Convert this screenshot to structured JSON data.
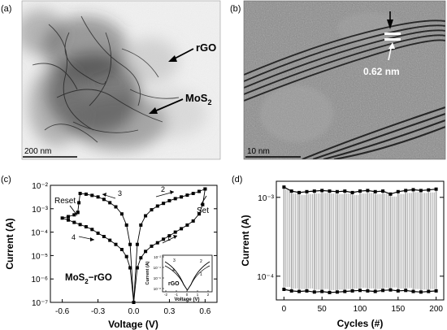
{
  "panel_a": {
    "letter": "(a)",
    "label_rgo": "rGO",
    "label_mos2_main": "MoS",
    "label_mos2_sub": "2",
    "scale_bar": "200 nm"
  },
  "panel_b": {
    "letter": "(b)",
    "spacing_label": "0.62 nm",
    "scale_bar": "10 nm"
  },
  "panel_c": {
    "letter": "(c)",
    "reset_label": "Reset",
    "set_label": "Set",
    "sample_label": "MoS",
    "sample_sub": "2",
    "sample_suffix": "−rGO",
    "arrow_numbers": [
      "1",
      "2",
      "3",
      "4"
    ],
    "inset_label": "rGO",
    "inset_xlabel": "Voltage (V)",
    "inset_ylabel": "Current (A)",
    "inset_xticks": [
      "-2",
      "-1",
      "0",
      "1",
      "2"
    ],
    "inset_yticks": [
      "10⁻²",
      "10⁻⁴",
      "10⁻⁶",
      "10⁻⁸"
    ],
    "inset_curve_labels": [
      "1",
      "2",
      "3",
      "4"
    ]
  },
  "panel_d": {
    "letter": "(d)"
  },
  "chart_data": [
    {
      "type": "line",
      "panel": "c",
      "xlabel": "Voltage (V)",
      "ylabel": "Current (A)",
      "xlim": [
        -0.7,
        0.7
      ],
      "ylim": [
        1e-07,
        0.01
      ],
      "yscale": "log",
      "xticks": [
        "-0.6",
        "-0.3",
        "0.0",
        "0.3",
        "0.6"
      ],
      "yticks": [
        "10⁻²",
        "10⁻³",
        "10⁻⁴",
        "10⁻⁵",
        "10⁻⁶",
        "10⁻⁷"
      ],
      "series": [
        {
          "values": [
            [
              0.0,
              1e-07
            ],
            [
              0.03,
              3e-06
            ],
            [
              0.06,
              8e-06
            ],
            [
              0.1,
              1.5e-05
            ],
            [
              0.15,
              2.5e-05
            ],
            [
              0.2,
              3.5e-05
            ],
            [
              0.25,
              5e-05
            ],
            [
              0.3,
              7e-05
            ],
            [
              0.35,
              0.0001
            ],
            [
              0.4,
              0.00014
            ],
            [
              0.45,
              0.0002
            ],
            [
              0.5,
              0.0003
            ],
            [
              0.55,
              0.0006
            ],
            [
              0.58,
              0.0015
            ],
            [
              0.6,
              0.007
            ]
          ]
        },
        {
          "values": [
            [
              0.6,
              0.007
            ],
            [
              0.55,
              0.0055
            ],
            [
              0.5,
              0.0045
            ],
            [
              0.45,
              0.0038
            ],
            [
              0.4,
              0.0032
            ],
            [
              0.35,
              0.0027
            ],
            [
              0.3,
              0.0022
            ],
            [
              0.25,
              0.0017
            ],
            [
              0.2,
              0.0013
            ],
            [
              0.15,
              0.0009
            ],
            [
              0.1,
              0.0005
            ],
            [
              0.06,
              0.0002
            ],
            [
              0.03,
              3e-05
            ],
            [
              0.0,
              1e-07
            ]
          ]
        },
        {
          "values": [
            [
              0.0,
              1e-07
            ],
            [
              -0.03,
              3e-05
            ],
            [
              -0.06,
              0.0002
            ],
            [
              -0.1,
              0.0006
            ],
            [
              -0.15,
              0.0012
            ],
            [
              -0.2,
              0.0018
            ],
            [
              -0.25,
              0.0025
            ],
            [
              -0.3,
              0.0032
            ],
            [
              -0.35,
              0.0037
            ],
            [
              -0.4,
              0.0042
            ],
            [
              -0.45,
              0.0045
            ],
            [
              -0.46,
              0.0018
            ],
            [
              -0.47,
              0.0007
            ]
          ]
        },
        {
          "values": [
            [
              -0.47,
              0.0007
            ],
            [
              -0.5,
              0.00055
            ],
            [
              -0.55,
              0.00046
            ],
            [
              -0.6,
              0.0004
            ],
            [
              -0.55,
              0.00033
            ],
            [
              -0.5,
              0.00026
            ],
            [
              -0.45,
              0.00021
            ],
            [
              -0.4,
              0.00017
            ],
            [
              -0.35,
              0.00013
            ],
            [
              -0.3,
              9e-05
            ],
            [
              -0.25,
              6.5e-05
            ],
            [
              -0.2,
              4.5e-05
            ],
            [
              -0.15,
              3e-05
            ],
            [
              -0.1,
              1.8e-05
            ],
            [
              -0.06,
              9e-06
            ],
            [
              -0.03,
              3e-06
            ],
            [
              0.0,
              1e-07
            ]
          ]
        }
      ]
    },
    {
      "type": "line",
      "panel": "d",
      "xlabel": "Cycles (#)",
      "ylabel": "Current (A)",
      "xlim": [
        -10,
        210
      ],
      "ylim": [
        5e-05,
        0.0016
      ],
      "yscale": "log",
      "xticks": [
        "0",
        "50",
        "100",
        "150",
        "200"
      ],
      "yticks": [
        "10⁻³",
        "10⁻⁴"
      ],
      "series": [
        {
          "values": [
            [
              0,
              0.00135
            ],
            [
              10,
              0.0012
            ],
            [
              20,
              0.00115
            ],
            [
              30,
              0.00118
            ],
            [
              40,
              0.0012
            ],
            [
              50,
              0.00122
            ],
            [
              60,
              0.0012
            ],
            [
              70,
              0.00118
            ],
            [
              80,
              0.0012
            ],
            [
              90,
              0.00115
            ],
            [
              100,
              0.0012
            ],
            [
              110,
              0.00122
            ],
            [
              120,
              0.00118
            ],
            [
              130,
              0.0012
            ],
            [
              140,
              0.0011
            ],
            [
              150,
              0.00118
            ],
            [
              160,
              0.00122
            ],
            [
              170,
              0.00125
            ],
            [
              180,
              0.00122
            ],
            [
              190,
              0.00124
            ],
            [
              200,
              0.00127
            ]
          ]
        },
        {
          "values": [
            [
              0,
              6.8e-05
            ],
            [
              10,
              6.5e-05
            ],
            [
              20,
              6.4e-05
            ],
            [
              30,
              6.5e-05
            ],
            [
              40,
              6.3e-05
            ],
            [
              50,
              6.4e-05
            ],
            [
              60,
              6.2e-05
            ],
            [
              70,
              6.3e-05
            ],
            [
              80,
              6.4e-05
            ],
            [
              90,
              6.5e-05
            ],
            [
              100,
              6.6e-05
            ],
            [
              110,
              6.5e-05
            ],
            [
              120,
              6.4e-05
            ],
            [
              130,
              6.6e-05
            ],
            [
              140,
              6.7e-05
            ],
            [
              150,
              6.5e-05
            ],
            [
              160,
              6.6e-05
            ],
            [
              170,
              6.4e-05
            ],
            [
              180,
              6.3e-05
            ],
            [
              190,
              6.4e-05
            ],
            [
              200,
              6.5e-05
            ]
          ]
        }
      ]
    }
  ]
}
